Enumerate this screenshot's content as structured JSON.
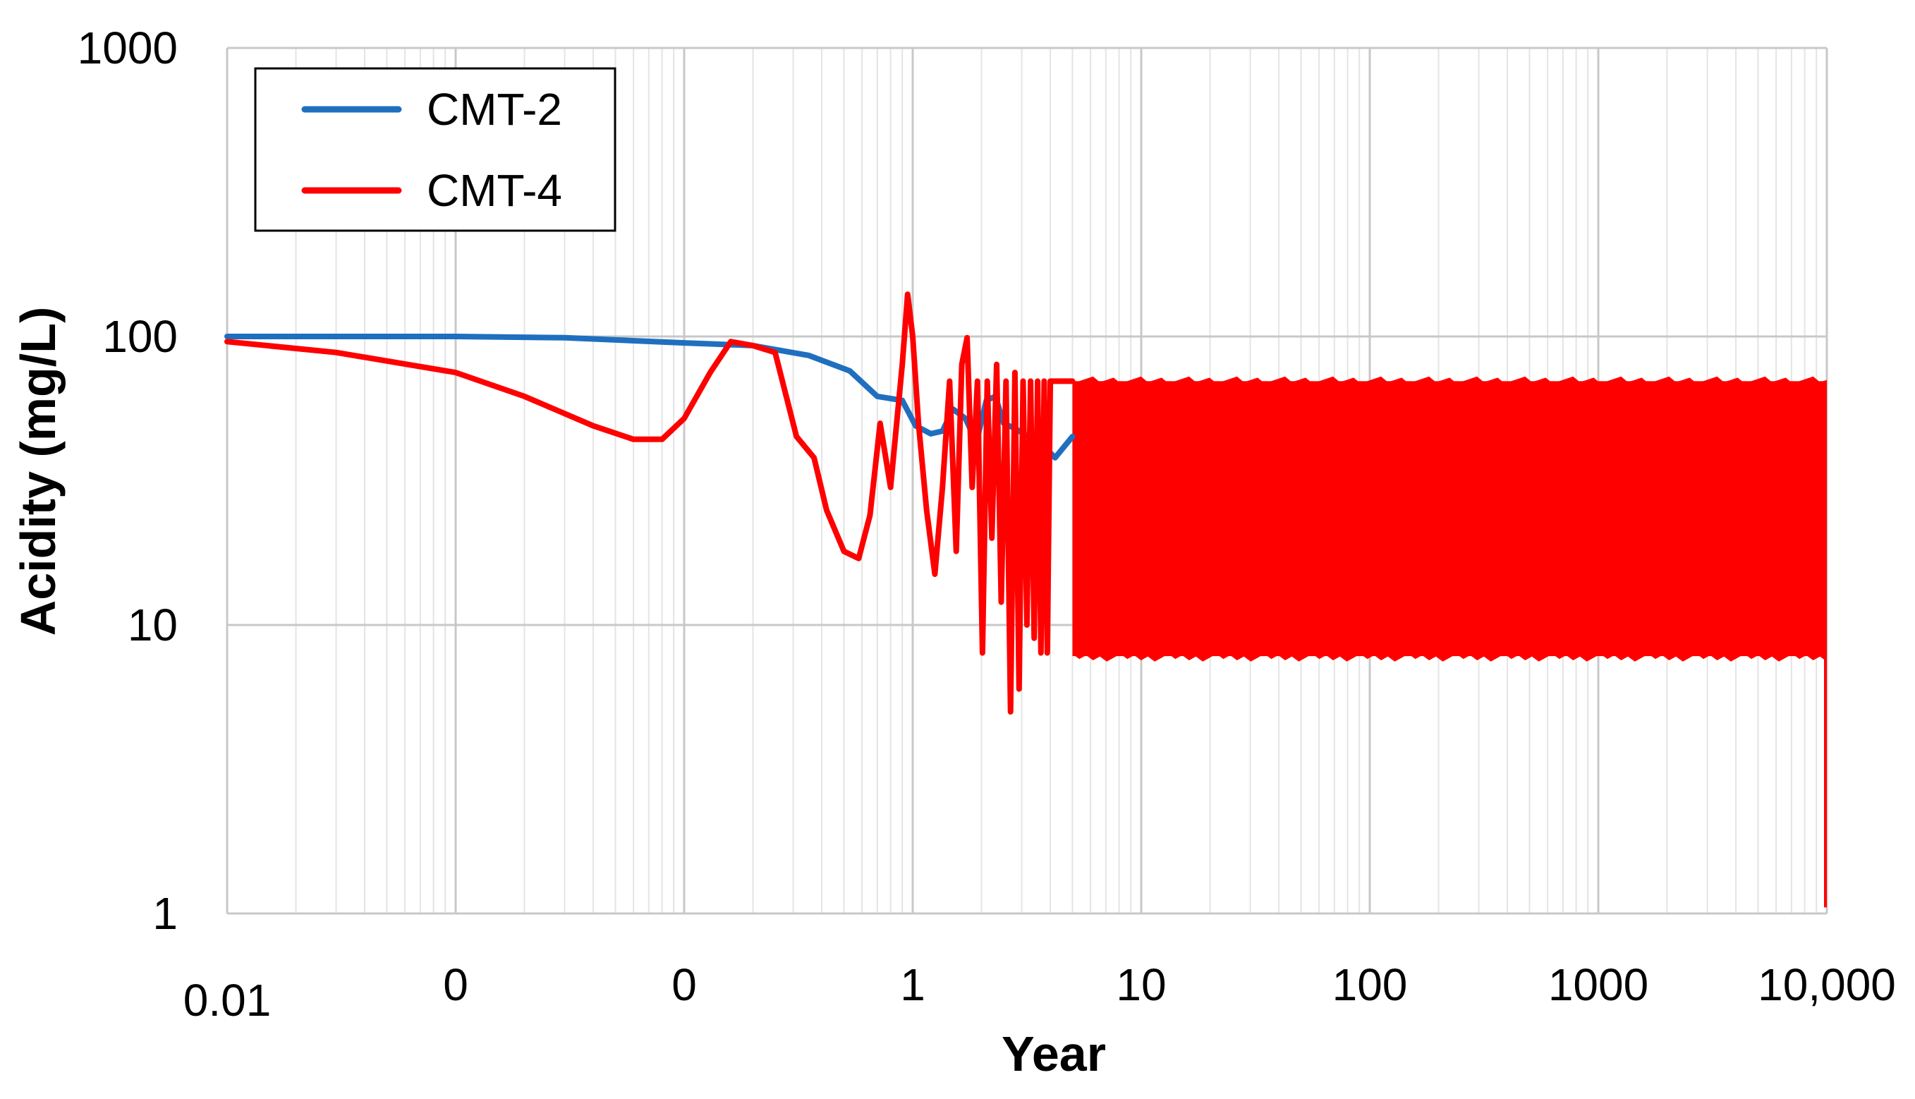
{
  "chart_data": {
    "type": "line",
    "title": "",
    "xlabel": "Year",
    "ylabel": "Acidity (mg/L)",
    "x_scale": "log",
    "y_scale": "log",
    "xlim": [
      0.01,
      10000
    ],
    "ylim": [
      1,
      1000
    ],
    "grid": true,
    "legend_position": "top-left",
    "x_ticks": [
      {
        "value": 0.01,
        "label": "0.01"
      },
      {
        "value": 0.1,
        "label": "0"
      },
      {
        "value": 1,
        "label": "0"
      },
      {
        "value": 10,
        "label": "1"
      },
      {
        "value": 100,
        "label": "10"
      },
      {
        "value": 1000,
        "label": "100"
      },
      {
        "value": 10000,
        "label": "1000"
      },
      {
        "value": 100000,
        "label": "10,000"
      }
    ],
    "y_ticks": [
      {
        "value": 1,
        "label": "1"
      },
      {
        "value": 10,
        "label": "10"
      },
      {
        "value": 100,
        "label": "100"
      },
      {
        "value": 1000,
        "label": "1000"
      }
    ],
    "series": [
      {
        "name": "CMT-2",
        "color": "#1f6fbf",
        "x": [
          0.01,
          0.1,
          0.3,
          1,
          2,
          3.5,
          5.3,
          7,
          9,
          10.3,
          12,
          13.5,
          15,
          17,
          19,
          21,
          23,
          25,
          28,
          32,
          36,
          42,
          50
        ],
        "y": [
          100,
          100,
          99,
          95,
          93,
          86,
          76,
          62,
          60,
          49,
          46,
          47,
          56,
          52,
          43,
          60,
          62,
          50,
          48,
          45,
          43,
          38,
          45
        ]
      },
      {
        "name": "CMT-4",
        "color": "#ff0000",
        "x": [
          0.01,
          0.03,
          0.1,
          0.2,
          0.4,
          0.6,
          0.8,
          1.0,
          1.3,
          1.6,
          2.0,
          2.5,
          3.1,
          3.7,
          4.2,
          5.0,
          5.8,
          6.5,
          7.2,
          8.0,
          9.0,
          9.5,
          10.0,
          10.6,
          11.5,
          12.5,
          13.5,
          14.5,
          15.5,
          16.4,
          17.3,
          18.2,
          19.2,
          20.2,
          21.2,
          22.2,
          23.3,
          24.4,
          25.6,
          26.8,
          28.0,
          29.2,
          30.4,
          31.6,
          32.8,
          34.0,
          35.2,
          36.4,
          37.6,
          38.8,
          40,
          50
        ],
        "y": [
          96,
          88,
          75,
          62,
          49,
          44,
          44,
          52,
          75,
          96,
          93,
          88,
          45,
          38,
          25,
          18,
          17,
          24,
          50,
          30,
          80,
          140,
          100,
          50,
          25,
          15,
          30,
          70,
          18,
          80,
          99,
          30,
          70,
          8,
          70,
          20,
          80,
          12,
          70,
          5,
          75,
          6,
          70,
          10,
          70,
          9,
          70,
          8,
          70,
          8,
          70,
          70
        ]
      }
    ],
    "oscillation_band": {
      "series": "CMT-4",
      "x_start": 50,
      "x_end": 100000,
      "upper": 70,
      "lower": 7.8,
      "end_drop": 1.05
    }
  }
}
